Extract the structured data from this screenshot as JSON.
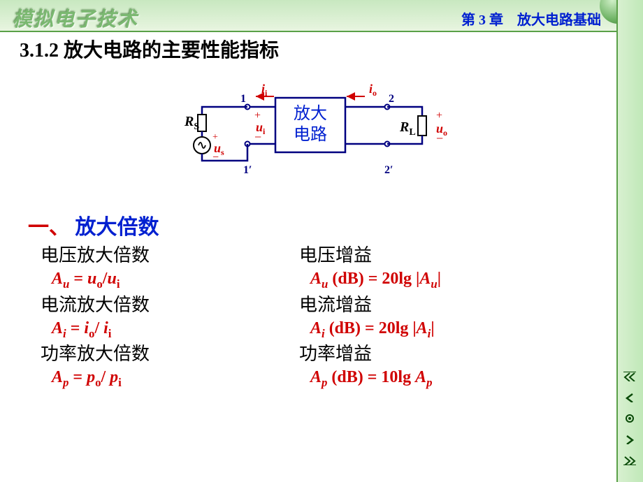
{
  "header": {
    "logo": "模拟电子技术",
    "chapter": "第 3 章　放大电路基础"
  },
  "slide": {
    "section_title": "3.1.2  放大电路的主要性能指标",
    "subtitle_num": "一、",
    "subtitle_text": "放大倍数"
  },
  "diagram": {
    "box_line1": "放大",
    "box_line2": "电路",
    "Rs": "R",
    "Rs_sub": "S",
    "RL": "R",
    "RL_sub": "L",
    "us": "u",
    "us_sub": "s",
    "ui": "u",
    "ui_sub": "i",
    "uo": "u",
    "uo_sub": "o",
    "ii": "i",
    "ii_sub": "i",
    "io": "i",
    "io_sub": "o",
    "n1": "1",
    "n1p": "1′",
    "n2": "2",
    "n2p": "2′",
    "colors": {
      "wire": "#000080",
      "box_text": "#0020d0",
      "var_red": "#d00000",
      "node": "#000080"
    }
  },
  "rows": [
    {
      "left_label": "电压放大倍数",
      "left_formula_html": "A<sub>u</sub> <span class='rm'>=</span> u<sub><span class='rm'>o</span></sub><span class='rm'>/</span>u<sub><span class='rm'>i</span></sub>",
      "right_label": "电压增益",
      "right_formula_html": "A<sub>u</sub> <span class='rm'>(dB) = 20lg |</span>A<sub>u</sub><span class='rm'>|</span>"
    },
    {
      "left_label": "电流放大倍数",
      "left_formula_html": "A<sub>i</sub> <span class='rm'>= </span> i<sub><span class='rm'>o</span></sub><span class='rm'>/ </span>i<sub><span class='rm'>i</span></sub>",
      "right_label": "电流增益",
      "right_formula_html": "A<sub>i</sub> <span class='rm'>(dB) = 20lg |</span>A<sub>i</sub><span class='rm'>|</span>"
    },
    {
      "left_label": "功率放大倍数",
      "left_formula_html": "A<sub>p</sub> <span class='rm'>= </span>p<sub><span class='rm'>o</span></sub><span class='rm'>/ </span>p<sub><span class='rm'>i</span></sub>",
      "right_label": "功率增益",
      "right_formula_html": "A<sub>p</sub> <span class='rm'>(dB) = 10lg </span>A<sub>p</sub>"
    }
  ],
  "style": {
    "title_fontsize": 28,
    "subtitle_fontsize": 30,
    "label_fontsize": 26,
    "formula_fontsize": 24,
    "formula_color": "#d00000",
    "title_color": "#000000",
    "subtitle_color": "#0020d0",
    "background": "#ffffff",
    "topbar_gradient": [
      "#c8e8c0",
      "#e8f5e0"
    ],
    "strip_gradient": [
      "#d8f0d0",
      "#c0e8b8"
    ],
    "border_color": "#5aa048"
  }
}
